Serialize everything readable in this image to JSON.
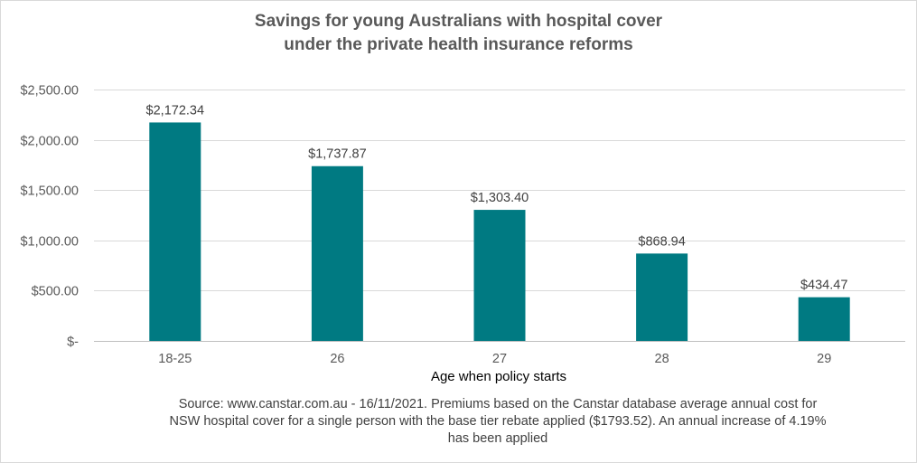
{
  "chart_data": {
    "type": "bar",
    "title": [
      "Savings for young Australians with hospital cover",
      "under the private health insurance reforms"
    ],
    "categories": [
      "18-25",
      "26",
      "27",
      "28",
      "29"
    ],
    "values": [
      2172.34,
      1737.87,
      1303.4,
      868.94,
      434.47
    ],
    "data_labels": [
      "$2,172.34",
      "$1,737.87",
      "$1,303.40",
      "$868.94",
      "$434.47"
    ],
    "xlabel": "Age when policy starts",
    "ylabel": "",
    "ylim": [
      0,
      2500
    ],
    "yticks": [
      0,
      500,
      1000,
      1500,
      2000,
      2500
    ],
    "ytick_labels": [
      "$-",
      "$500.00",
      "$1,000.00",
      "$1,500.00",
      "$2,000.00",
      "$2,500.00"
    ],
    "grid": true,
    "bar_color": "#007a82"
  },
  "source_note": [
    "Source: www.canstar.com.au  - 16/11/2021. Premiums based on the Canstar database average annual cost for",
    "NSW hospital cover for a single person with the base tier rebate applied ($1793.52). An annual increase of 4.19%",
    "has been applied"
  ],
  "colors": {
    "gridline": "#d9d9d9",
    "axis_text": "#595959",
    "label_text": "#404040"
  }
}
